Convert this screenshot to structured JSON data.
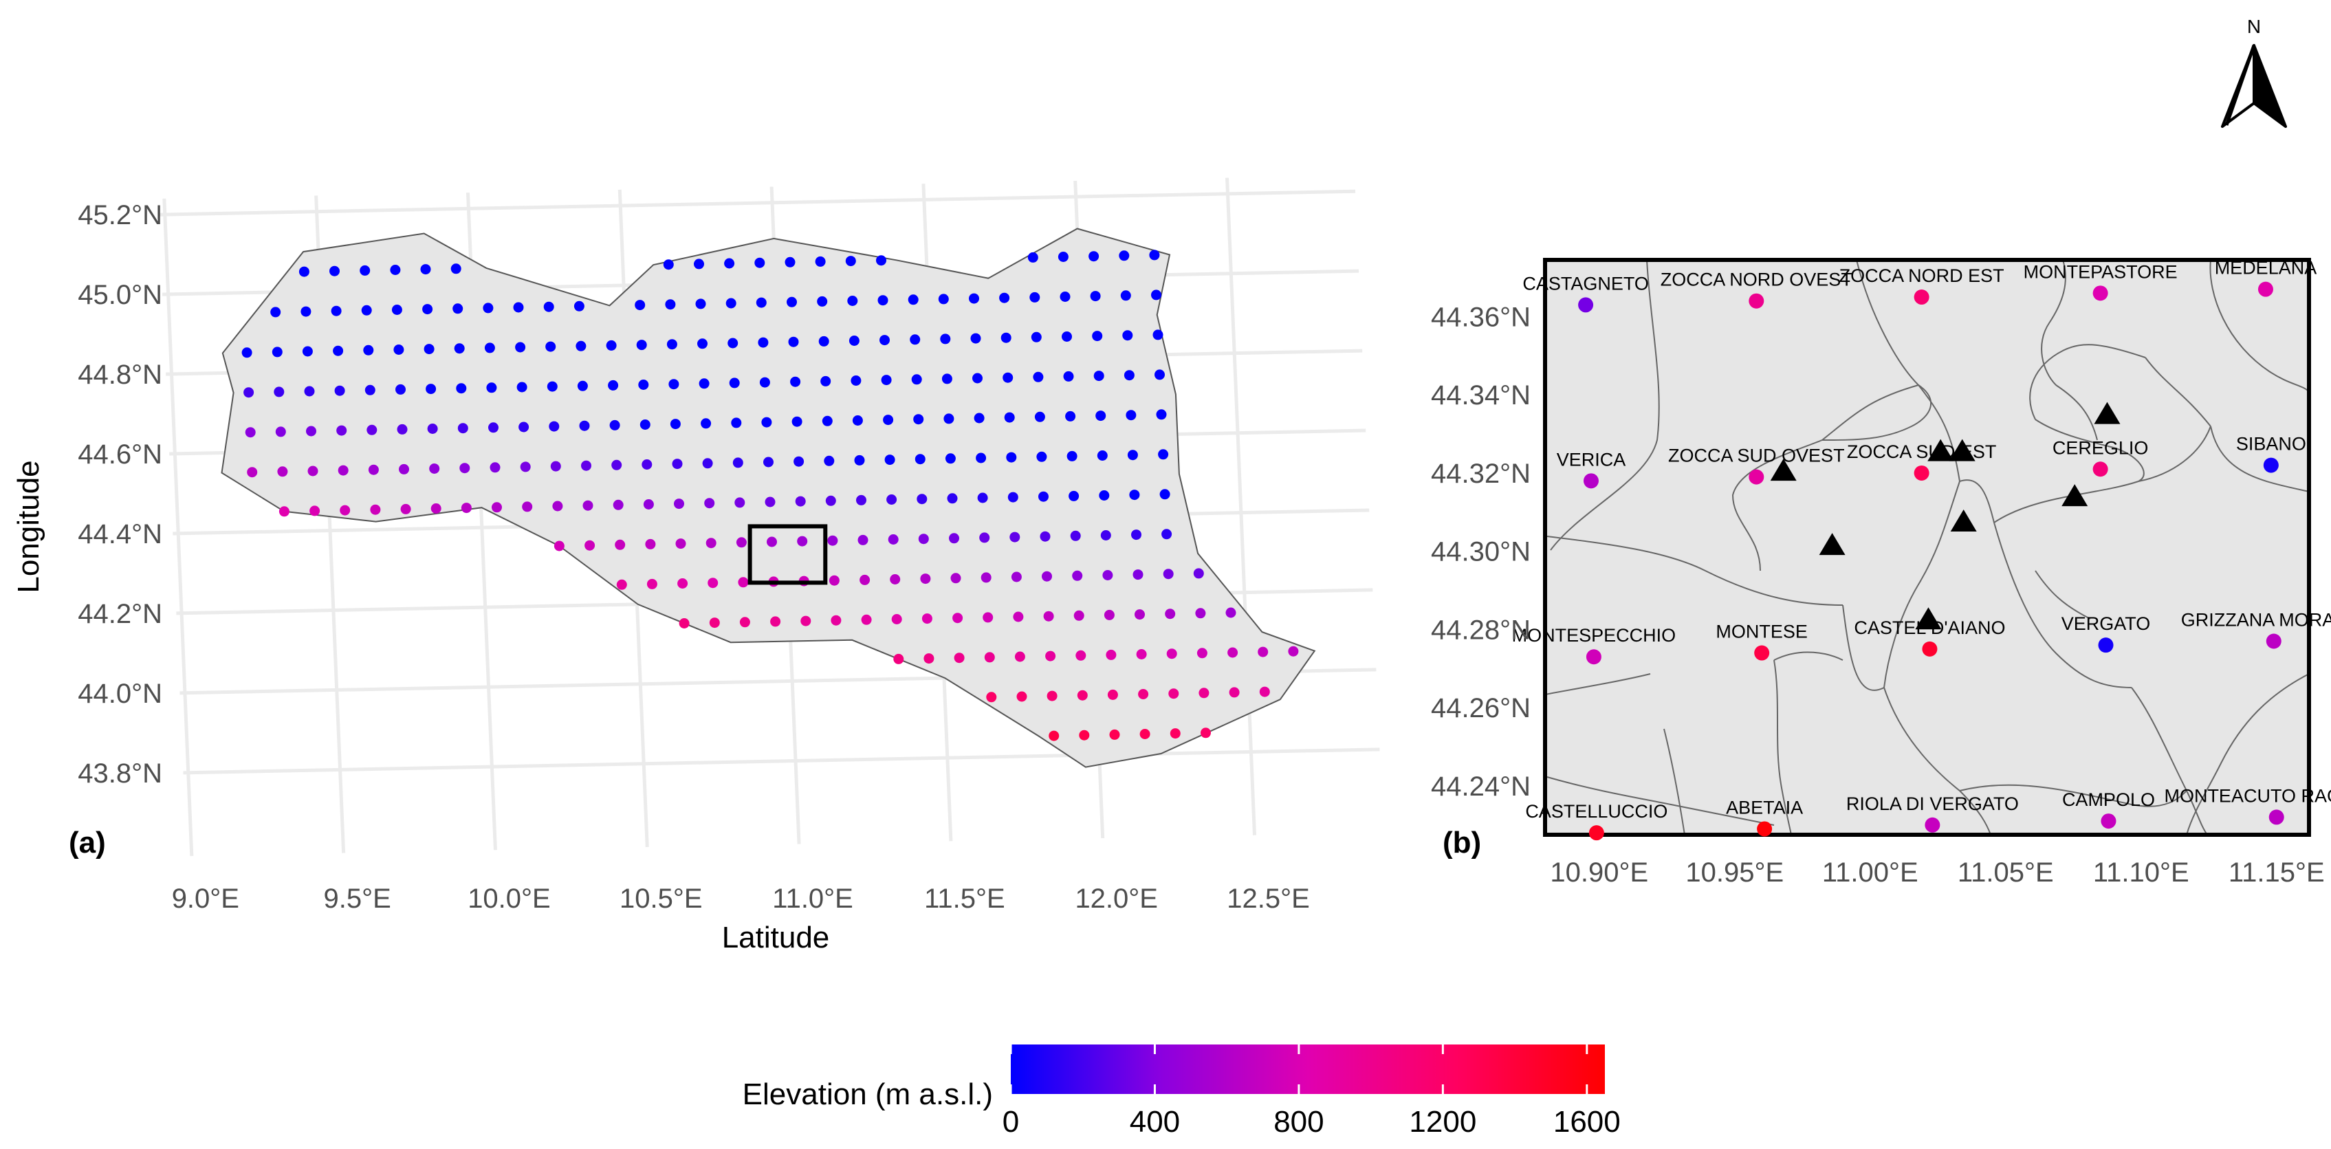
{
  "panel_a": {
    "label": "(a)",
    "xlabel": "Latitude",
    "ylabel": "Longitude",
    "x_ticks": [
      "9.0°E",
      "9.5°E",
      "10.0°E",
      "10.5°E",
      "11.0°E",
      "11.5°E",
      "12.0°E",
      "12.5°E"
    ],
    "y_ticks": [
      "45.2°N",
      "45.0°N",
      "44.8°N",
      "44.6°N",
      "44.4°N",
      "44.2°N",
      "44.0°N",
      "43.8°N"
    ],
    "x_range": [
      8.98,
      12.92
    ],
    "y_range": [
      43.66,
      45.24
    ],
    "zoom_box": {
      "lon": [
        10.88,
        11.12
      ],
      "lat": [
        44.245,
        44.39
      ]
    },
    "grid_spacing_deg": 0.1,
    "region_outline": [
      [
        9.17,
        44.85
      ],
      [
        9.45,
        45.1
      ],
      [
        9.85,
        45.14
      ],
      [
        10.05,
        45.05
      ],
      [
        10.45,
        44.95
      ],
      [
        10.6,
        45.05
      ],
      [
        11.0,
        45.11
      ],
      [
        11.4,
        45.05
      ],
      [
        11.7,
        45.0
      ],
      [
        12.0,
        45.12
      ],
      [
        12.3,
        45.05
      ],
      [
        12.25,
        44.9
      ],
      [
        12.3,
        44.7
      ],
      [
        12.3,
        44.5
      ],
      [
        12.35,
        44.3
      ],
      [
        12.55,
        44.1
      ],
      [
        12.72,
        44.05
      ],
      [
        12.6,
        43.93
      ],
      [
        12.2,
        43.8
      ],
      [
        11.95,
        43.77
      ],
      [
        11.8,
        43.85
      ],
      [
        11.5,
        44.0
      ],
      [
        11.2,
        44.1
      ],
      [
        10.8,
        44.1
      ],
      [
        10.5,
        44.2
      ],
      [
        10.25,
        44.35
      ],
      [
        10.0,
        44.45
      ],
      [
        9.65,
        44.42
      ],
      [
        9.35,
        44.45
      ],
      [
        9.15,
        44.55
      ],
      [
        9.2,
        44.75
      ],
      [
        9.17,
        44.85
      ]
    ]
  },
  "panel_b": {
    "label": "(b)",
    "x_ticks": [
      "10.90°E",
      "10.95°E",
      "11.00°E",
      "11.05°E",
      "11.10°E",
      "11.15°E"
    ],
    "y_ticks": [
      "44.36°N",
      "44.34°N",
      "44.32°N",
      "44.30°N",
      "44.28°N",
      "44.26°N",
      "44.24°N"
    ],
    "x_range": [
      10.88,
      11.162
    ],
    "y_range": [
      44.2275,
      44.3745
    ],
    "stations": [
      {
        "name": "CASTAGNETO",
        "lon": 10.895,
        "lat": 44.363,
        "elev": 350
      },
      {
        "name": "ZOCCA NORD OVEST",
        "lon": 10.958,
        "lat": 44.364,
        "elev": 1000
      },
      {
        "name": "ZOCCA NORD EST",
        "lon": 11.019,
        "lat": 44.365,
        "elev": 1150
      },
      {
        "name": "MONTEPASTORE",
        "lon": 11.085,
        "lat": 44.366,
        "elev": 820
      },
      {
        "name": "MEDELANA",
        "lon": 11.146,
        "lat": 44.367,
        "elev": 850
      },
      {
        "name": "VERICA",
        "lon": 10.897,
        "lat": 44.318,
        "elev": 620
      },
      {
        "name": "ZOCCA SUD OVEST",
        "lon": 10.958,
        "lat": 44.319,
        "elev": 900
      },
      {
        "name": "ZOCCA SUD EST",
        "lon": 11.019,
        "lat": 44.32,
        "elev": 1280
      },
      {
        "name": "CEREGLIO",
        "lon": 11.085,
        "lat": 44.321,
        "elev": 1100
      },
      {
        "name": "SIBANO",
        "lon": 11.148,
        "lat": 44.322,
        "elev": 60
      },
      {
        "name": "MONTESPECCHIO",
        "lon": 10.898,
        "lat": 44.273,
        "elev": 750
      },
      {
        "name": "MONTESE",
        "lon": 10.96,
        "lat": 44.274,
        "elev": 1350
      },
      {
        "name": "CASTEL D'AIANO",
        "lon": 11.022,
        "lat": 44.275,
        "elev": 1450
      },
      {
        "name": "VERGATO",
        "lon": 11.087,
        "lat": 44.276,
        "elev": 60
      },
      {
        "name": "GRIZZANA MORANDI",
        "lon": 11.149,
        "lat": 44.277,
        "elev": 650
      },
      {
        "name": "CASTELLUCCIO",
        "lon": 10.899,
        "lat": 44.228,
        "elev": 1500
      },
      {
        "name": "ABETAIA",
        "lon": 10.961,
        "lat": 44.229,
        "elev": 1620
      },
      {
        "name": "RIOLA DI VERGATO",
        "lon": 11.023,
        "lat": 44.23,
        "elev": 700
      },
      {
        "name": "CAMPOLO",
        "lon": 11.088,
        "lat": 44.231,
        "elev": 700
      },
      {
        "name": "MONTEACUTO RAGAZZA",
        "lon": 11.15,
        "lat": 44.232,
        "elev": 650
      }
    ],
    "gauges": [
      {
        "lon": 10.968,
        "lat": 44.3205
      },
      {
        "lon": 10.986,
        "lat": 44.3015
      },
      {
        "lon": 11.026,
        "lat": 44.3255
      },
      {
        "lon": 11.034,
        "lat": 44.3255
      },
      {
        "lon": 11.0345,
        "lat": 44.3075
      },
      {
        "lon": 11.0215,
        "lat": 44.2825
      },
      {
        "lon": 11.0755,
        "lat": 44.314
      },
      {
        "lon": 11.0875,
        "lat": 44.335
      }
    ]
  },
  "legend": {
    "title": "Elevation (m a.s.l.)",
    "ticks": [
      "0",
      "400",
      "800",
      "1200",
      "1600"
    ],
    "range": [
      0,
      1650
    ],
    "colors": [
      "#0000ff",
      "#ff00a0",
      "#ff0000"
    ]
  },
  "north_arrow": {
    "label": "N"
  }
}
